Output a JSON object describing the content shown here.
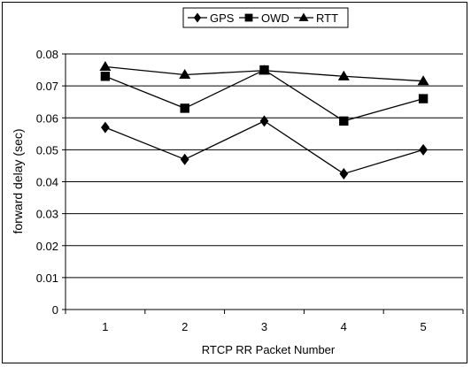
{
  "chart_data": {
    "type": "line",
    "categories": [
      "1",
      "2",
      "3",
      "4",
      "5"
    ],
    "series": [
      {
        "name": "GPS",
        "marker": "diamond",
        "values": [
          0.057,
          0.047,
          0.059,
          0.0425,
          0.05
        ]
      },
      {
        "name": "OWD",
        "marker": "square",
        "values": [
          0.073,
          0.063,
          0.075,
          0.059,
          0.066
        ]
      },
      {
        "name": "RTT",
        "marker": "triangle",
        "values": [
          0.076,
          0.0735,
          0.0748,
          0.073,
          0.0715
        ]
      }
    ],
    "title": "",
    "xlabel": "RTCP RR Packet Number",
    "ylabel": "forward delay (sec)",
    "ylim": [
      0,
      0.08
    ],
    "yticks": [
      "0",
      "0.01",
      "0.02",
      "0.03",
      "0.04",
      "0.05",
      "0.06",
      "0.07",
      "0.08"
    ],
    "grid": "horizontal",
    "legend": "top-center",
    "colors": {
      "line": "#000000",
      "marker": "#000000",
      "grid": "#000000",
      "background": "#ffffff"
    }
  }
}
